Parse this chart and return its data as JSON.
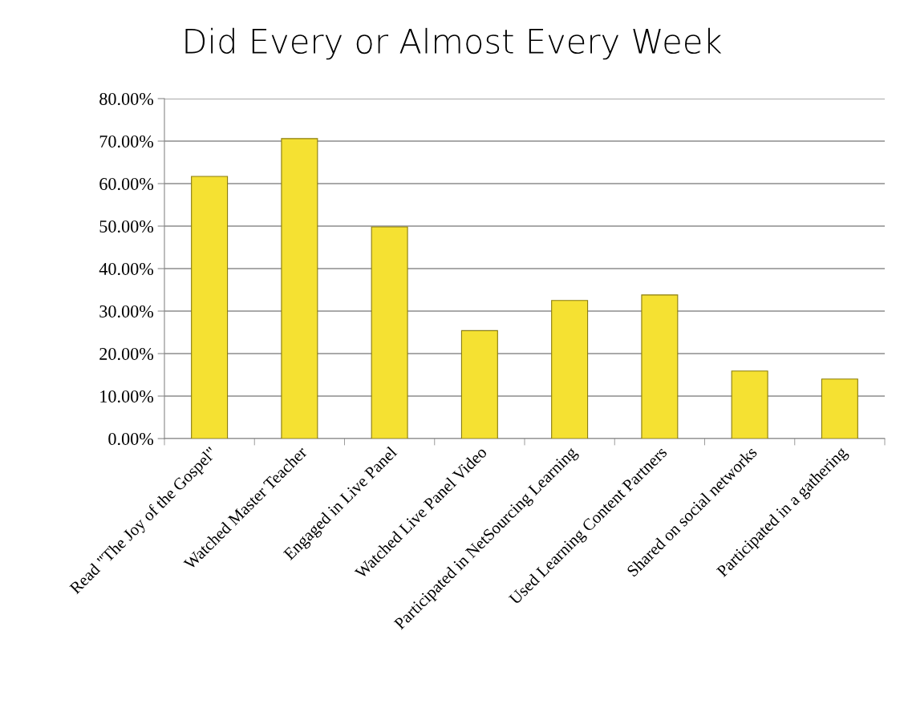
{
  "chart_data": {
    "type": "bar",
    "title": "Did Every or Almost Every Week",
    "categories": [
      "Read \"The Joy of the Gospel\"",
      "Watched Master Teacher",
      "Engaged in Live Panel",
      "Watched Live Panel Video",
      "Participated in NetSourcing Learning",
      "Used Learning Content Partners",
      "Shared on social networks",
      "Participated in a gathering"
    ],
    "values": [
      61.7,
      70.6,
      49.8,
      25.4,
      32.5,
      33.8,
      15.9,
      14.0
    ],
    "color": "#f5e132",
    "ylim": [
      0,
      80
    ],
    "yticks": [
      {
        "value": 0,
        "label": "0.00%"
      },
      {
        "value": 10,
        "label": "10.00%"
      },
      {
        "value": 20,
        "label": "20.00%"
      },
      {
        "value": 30,
        "label": "30.00%"
      },
      {
        "value": 40,
        "label": "40.00%"
      },
      {
        "value": 50,
        "label": "50.00%"
      },
      {
        "value": 60,
        "label": "60.00%"
      },
      {
        "value": 70,
        "label": "70.00%"
      },
      {
        "value": 80,
        "label": "80.00%"
      }
    ],
    "grid": "y"
  }
}
